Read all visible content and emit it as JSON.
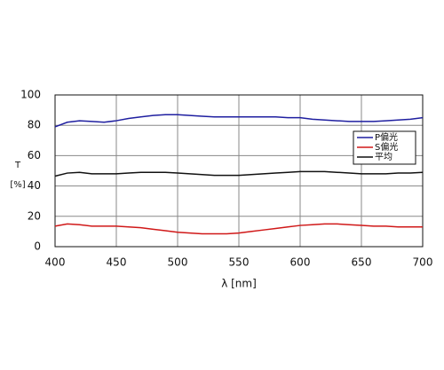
{
  "chart_data": {
    "type": "line",
    "xlabel": "λ [nm]",
    "ylabel": [
      "T",
      "[%]"
    ],
    "x": [
      400,
      410,
      420,
      430,
      440,
      450,
      460,
      470,
      480,
      490,
      500,
      510,
      520,
      530,
      540,
      550,
      560,
      570,
      580,
      590,
      600,
      610,
      620,
      630,
      640,
      650,
      660,
      670,
      680,
      690,
      700
    ],
    "series": [
      {
        "name": "P偏光",
        "color": "#1f1fa0",
        "values": [
          79,
          82,
          83,
          82.5,
          82,
          83,
          84.5,
          85.5,
          86.5,
          87,
          87,
          86.5,
          86,
          85.5,
          85.5,
          85.5,
          85.5,
          85.5,
          85.5,
          85,
          85,
          84,
          83.5,
          83,
          82.5,
          82.5,
          82.5,
          83,
          83.5,
          84,
          85
        ]
      },
      {
        "name": "S偏光",
        "color": "#d01818",
        "values": [
          13.5,
          15,
          14.5,
          13.5,
          13.5,
          13.5,
          13,
          12.5,
          11.5,
          10.5,
          9.5,
          9,
          8.5,
          8.5,
          8.5,
          9,
          10,
          11,
          12,
          13,
          14,
          14.5,
          15,
          15,
          14.5,
          14,
          13.5,
          13.5,
          13,
          13,
          13
        ]
      },
      {
        "name": "平均",
        "color": "#111111",
        "values": [
          46.5,
          48.5,
          49,
          48,
          48,
          48,
          48.5,
          49,
          49,
          49,
          48.5,
          48,
          47.5,
          47,
          47,
          47,
          47.5,
          48,
          48.5,
          49,
          49.5,
          49.5,
          49.5,
          49,
          48.5,
          48,
          48,
          48,
          48.5,
          48.5,
          49
        ]
      }
    ],
    "xlim": [
      400,
      700
    ],
    "xticks": [
      400,
      450,
      500,
      550,
      600,
      650,
      700
    ],
    "ylim": [
      0,
      100
    ],
    "yticks": [
      0,
      20,
      40,
      60,
      80,
      100
    ],
    "grid": true,
    "legend": "upper right"
  }
}
